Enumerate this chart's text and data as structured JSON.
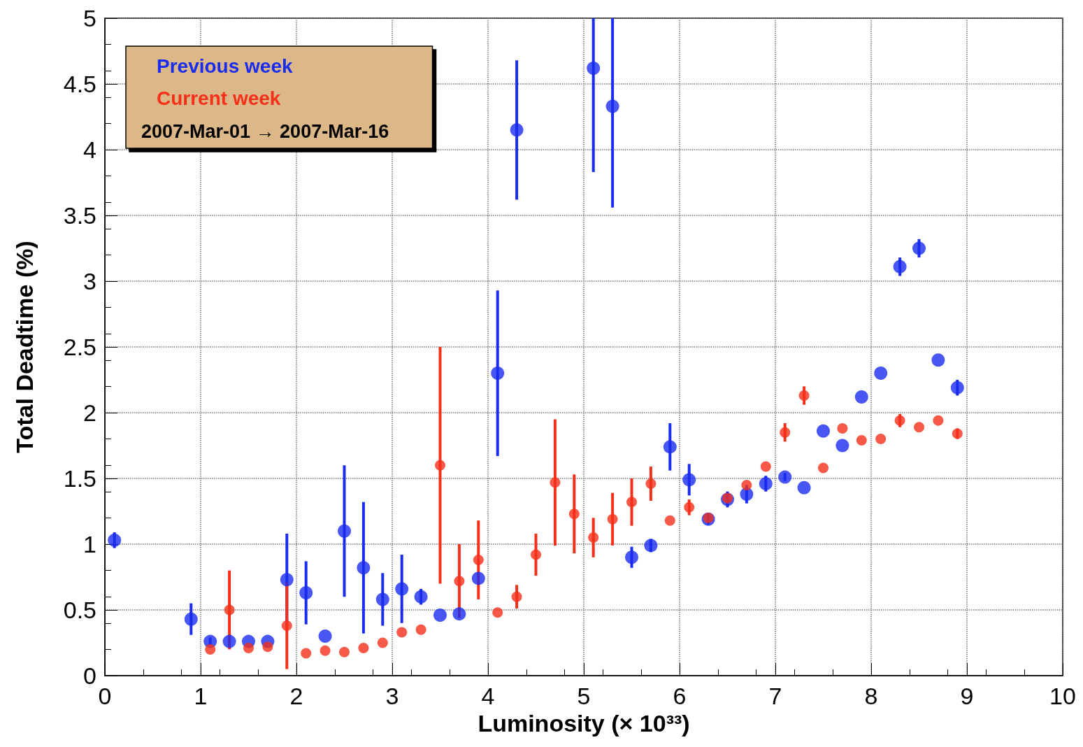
{
  "chart_data": {
    "type": "scatter",
    "xlabel": "Luminosity (× 10³³)",
    "ylabel": "Total Deadtime (%)",
    "xlim": [
      0,
      10
    ],
    "ylim": [
      0,
      5
    ],
    "xticks": [
      0,
      1,
      2,
      3,
      4,
      5,
      6,
      7,
      8,
      9,
      10
    ],
    "yticks": [
      0,
      0.5,
      1,
      1.5,
      2,
      2.5,
      3,
      3.5,
      4,
      4.5,
      5
    ],
    "grid": true,
    "legend": "top left",
    "marker": "circle",
    "annotations": [
      "2007-Mar-01 → 2007-Mar-16"
    ],
    "series": [
      {
        "name": "Previous week",
        "color": "#1a2cf0",
        "x": [
          0.1,
          0.9,
          1.1,
          1.3,
          1.5,
          1.7,
          1.9,
          2.1,
          2.3,
          2.5,
          2.7,
          2.9,
          3.1,
          3.3,
          3.5,
          3.7,
          3.9,
          4.1,
          4.3,
          5.1,
          5.3,
          5.5,
          5.7,
          5.9,
          6.1,
          6.3,
          6.5,
          6.7,
          6.9,
          7.1,
          7.3,
          7.5,
          7.7,
          7.9,
          8.1,
          8.3,
          8.5,
          8.7,
          8.9
        ],
        "values": [
          1.03,
          0.43,
          0.26,
          0.26,
          0.26,
          0.26,
          0.73,
          0.63,
          0.3,
          1.1,
          0.82,
          0.58,
          0.66,
          0.6,
          0.46,
          0.47,
          0.74,
          2.3,
          4.15,
          4.62,
          4.33,
          0.9,
          0.99,
          1.74,
          1.49,
          1.19,
          1.34,
          1.38,
          1.46,
          1.51,
          1.43,
          1.86,
          1.75,
          2.12,
          2.3,
          3.11,
          3.25,
          2.4,
          2.19
        ],
        "errors": [
          0.06,
          0.12,
          0.03,
          0.03,
          null,
          null,
          0.35,
          0.24,
          null,
          0.5,
          0.5,
          0.2,
          0.26,
          0.06,
          null,
          null,
          null,
          0.63,
          0.53,
          [
            3.83,
            5
          ],
          [
            3.56,
            5
          ],
          0.08,
          0.05,
          0.18,
          0.12,
          0.04,
          0.06,
          0.07,
          0.06,
          0.03,
          null,
          null,
          null,
          null,
          null,
          0.07,
          0.07,
          null,
          0.06
        ]
      },
      {
        "name": "Current week",
        "color": "#f5301a",
        "x": [
          1.1,
          1.3,
          1.5,
          1.7,
          1.9,
          2.1,
          2.3,
          2.5,
          2.7,
          2.9,
          3.1,
          3.3,
          3.5,
          3.7,
          3.9,
          4.1,
          4.3,
          4.5,
          4.7,
          4.9,
          5.1,
          5.3,
          5.5,
          5.7,
          5.9,
          6.1,
          6.3,
          6.5,
          6.7,
          6.9,
          7.1,
          7.3,
          7.5,
          7.7,
          7.9,
          8.1,
          8.3,
          8.5,
          8.7,
          8.9
        ],
        "values": [
          0.2,
          0.5,
          0.21,
          0.22,
          0.38,
          0.17,
          0.19,
          0.18,
          0.21,
          0.25,
          0.33,
          0.35,
          1.6,
          0.72,
          0.88,
          0.48,
          0.6,
          0.92,
          1.47,
          1.23,
          1.05,
          1.19,
          1.32,
          1.46,
          1.18,
          1.28,
          1.2,
          1.35,
          1.45,
          1.59,
          1.85,
          2.13,
          1.58,
          1.88,
          1.79,
          1.8,
          1.94,
          1.89,
          1.94,
          1.84
        ],
        "errors": [
          null,
          0.3,
          null,
          null,
          0.33,
          null,
          null,
          null,
          null,
          null,
          null,
          null,
          0.9,
          0.28,
          0.3,
          null,
          0.09,
          0.16,
          0.48,
          0.3,
          0.15,
          0.2,
          0.18,
          0.13,
          null,
          0.06,
          null,
          null,
          null,
          null,
          0.07,
          0.07,
          null,
          null,
          null,
          null,
          0.05,
          null,
          null,
          0.04
        ]
      }
    ]
  }
}
